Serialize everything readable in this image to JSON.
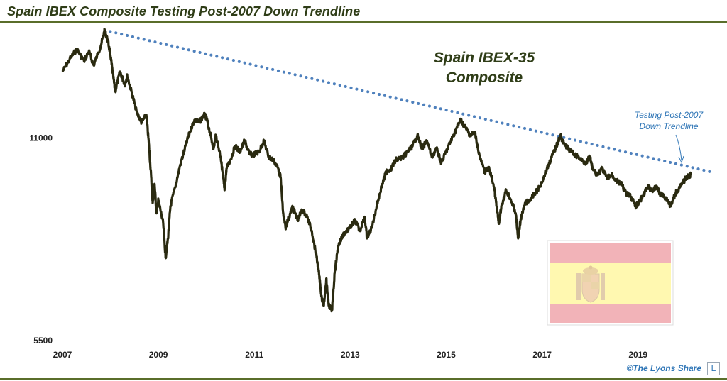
{
  "page": {
    "title": "Spain IBEX Composite Testing Post-2007 Down Trendline",
    "credit": "©The Lyons Share",
    "logo_letter": "L"
  },
  "colors": {
    "price_line": "#2a2a10",
    "trendline": "#4f81bd",
    "annotation": "#2e75b6",
    "title": "#2f3d17",
    "flag_red": "#f2b3b8",
    "flag_yellow": "#fff8b0"
  },
  "chart_data": {
    "type": "line",
    "scale": "log",
    "title": "Spain IBEX-35 Composite",
    "xlabel": "",
    "ylabel": "",
    "xlim": [
      2007.0,
      2020.5
    ],
    "ylim": [
      5500,
      16000
    ],
    "x_ticks": [
      "2007",
      "2009",
      "2011",
      "2013",
      "2015",
      "2017",
      "2019"
    ],
    "y_ticks": [
      {
        "value": 5500,
        "label": "5500"
      },
      {
        "value": 11000,
        "label": "11000"
      }
    ],
    "legend": "none",
    "grid": false,
    "series": [
      {
        "values": [
          [
            2007.0,
            13800
          ],
          [
            2007.15,
            14400
          ],
          [
            2007.3,
            14900
          ],
          [
            2007.45,
            14300
          ],
          [
            2007.55,
            14800
          ],
          [
            2007.65,
            14100
          ],
          [
            2007.8,
            15100
          ],
          [
            2007.88,
            15900
          ],
          [
            2007.95,
            15300
          ],
          [
            2008.0,
            14600
          ],
          [
            2008.05,
            13700
          ],
          [
            2008.1,
            12900
          ],
          [
            2008.2,
            13800
          ],
          [
            2008.3,
            13200
          ],
          [
            2008.35,
            13600
          ],
          [
            2008.45,
            12800
          ],
          [
            2008.55,
            12000
          ],
          [
            2008.65,
            11600
          ],
          [
            2008.75,
            11900
          ],
          [
            2008.8,
            10800
          ],
          [
            2008.85,
            9600
          ],
          [
            2008.88,
            8800
          ],
          [
            2008.92,
            9400
          ],
          [
            2008.96,
            8500
          ],
          [
            2009.0,
            8900
          ],
          [
            2009.1,
            8200
          ],
          [
            2009.15,
            7300
          ],
          [
            2009.2,
            7800
          ],
          [
            2009.25,
            8700
          ],
          [
            2009.35,
            9300
          ],
          [
            2009.45,
            10000
          ],
          [
            2009.55,
            10600
          ],
          [
            2009.65,
            11200
          ],
          [
            2009.75,
            11700
          ],
          [
            2009.85,
            11600
          ],
          [
            2009.95,
            11900
          ],
          [
            2010.0,
            11800
          ],
          [
            2010.05,
            11400
          ],
          [
            2010.15,
            10600
          ],
          [
            2010.2,
            11100
          ],
          [
            2010.3,
            10300
          ],
          [
            2010.35,
            9600
          ],
          [
            2010.38,
            9200
          ],
          [
            2010.42,
            9900
          ],
          [
            2010.5,
            10200
          ],
          [
            2010.6,
            10700
          ],
          [
            2010.7,
            10500
          ],
          [
            2010.8,
            10900
          ],
          [
            2010.9,
            10400
          ],
          [
            2011.0,
            10400
          ],
          [
            2011.1,
            10500
          ],
          [
            2011.2,
            10900
          ],
          [
            2011.3,
            10300
          ],
          [
            2011.4,
            10200
          ],
          [
            2011.5,
            9900
          ],
          [
            2011.55,
            9600
          ],
          [
            2011.6,
            8500
          ],
          [
            2011.65,
            8100
          ],
          [
            2011.7,
            8300
          ],
          [
            2011.8,
            8700
          ],
          [
            2011.9,
            8300
          ],
          [
            2012.0,
            8600
          ],
          [
            2012.1,
            8400
          ],
          [
            2012.2,
            8000
          ],
          [
            2012.3,
            7300
          ],
          [
            2012.35,
            6900
          ],
          [
            2012.4,
            6400
          ],
          [
            2012.45,
            6200
          ],
          [
            2012.5,
            6800
          ],
          [
            2012.55,
            6200
          ],
          [
            2012.62,
            6100
          ],
          [
            2012.68,
            7000
          ],
          [
            2012.75,
            7600
          ],
          [
            2012.85,
            7900
          ],
          [
            2013.0,
            8100
          ],
          [
            2013.1,
            8300
          ],
          [
            2013.2,
            8000
          ],
          [
            2013.3,
            8400
          ],
          [
            2013.35,
            7800
          ],
          [
            2013.45,
            8100
          ],
          [
            2013.55,
            8700
          ],
          [
            2013.65,
            9300
          ],
          [
            2013.75,
            9800
          ],
          [
            2013.85,
            9900
          ],
          [
            2013.95,
            10200
          ],
          [
            2014.1,
            10300
          ],
          [
            2014.2,
            10500
          ],
          [
            2014.3,
            10700
          ],
          [
            2014.4,
            11100
          ],
          [
            2014.5,
            10600
          ],
          [
            2014.6,
            10900
          ],
          [
            2014.7,
            10300
          ],
          [
            2014.8,
            10600
          ],
          [
            2014.9,
            10100
          ],
          [
            2015.0,
            10500
          ],
          [
            2015.1,
            10900
          ],
          [
            2015.2,
            11300
          ],
          [
            2015.3,
            11700
          ],
          [
            2015.4,
            11400
          ],
          [
            2015.5,
            11100
          ],
          [
            2015.6,
            11200
          ],
          [
            2015.7,
            10300
          ],
          [
            2015.8,
            9800
          ],
          [
            2015.9,
            9900
          ],
          [
            2016.0,
            9300
          ],
          [
            2016.05,
            8700
          ],
          [
            2016.1,
            8200
          ],
          [
            2016.15,
            8700
          ],
          [
            2016.25,
            9200
          ],
          [
            2016.35,
            8900
          ],
          [
            2016.45,
            8500
          ],
          [
            2016.5,
            7800
          ],
          [
            2016.55,
            8300
          ],
          [
            2016.65,
            8800
          ],
          [
            2016.75,
            8900
          ],
          [
            2016.85,
            9100
          ],
          [
            2016.95,
            9300
          ],
          [
            2017.1,
            9900
          ],
          [
            2017.2,
            10300
          ],
          [
            2017.3,
            10700
          ],
          [
            2017.38,
            11100
          ],
          [
            2017.45,
            10800
          ],
          [
            2017.6,
            10500
          ],
          [
            2017.75,
            10300
          ],
          [
            2017.9,
            10100
          ],
          [
            2018.0,
            10300
          ],
          [
            2018.05,
            9900
          ],
          [
            2018.15,
            9700
          ],
          [
            2018.25,
            9900
          ],
          [
            2018.35,
            9600
          ],
          [
            2018.45,
            9700
          ],
          [
            2018.55,
            9500
          ],
          [
            2018.65,
            9400
          ],
          [
            2018.75,
            9100
          ],
          [
            2018.85,
            9000
          ],
          [
            2018.95,
            8700
          ],
          [
            2019.0,
            8800
          ],
          [
            2019.1,
            9000
          ],
          [
            2019.2,
            9300
          ],
          [
            2019.3,
            9200
          ],
          [
            2019.4,
            9300
          ],
          [
            2019.45,
            9100
          ],
          [
            2019.55,
            9000
          ],
          [
            2019.62,
            8900
          ],
          [
            2019.68,
            8700
          ],
          [
            2019.78,
            9100
          ],
          [
            2019.88,
            9300
          ],
          [
            2020.0,
            9600
          ],
          [
            2020.1,
            9700
          ]
        ]
      }
    ],
    "trendline": {
      "style": "dotted",
      "points": [
        [
          2007.88,
          15900
        ],
        [
          2020.5,
          9800
        ]
      ]
    },
    "annotations": [
      {
        "text": "Testing Post-2007",
        "x": 2020.2,
        "y": 11100
      },
      {
        "text": "Down Trendline",
        "x": 2020.2,
        "y": 10700
      }
    ],
    "chart_title_lines": [
      "Spain IBEX-35",
      "Composite"
    ]
  }
}
